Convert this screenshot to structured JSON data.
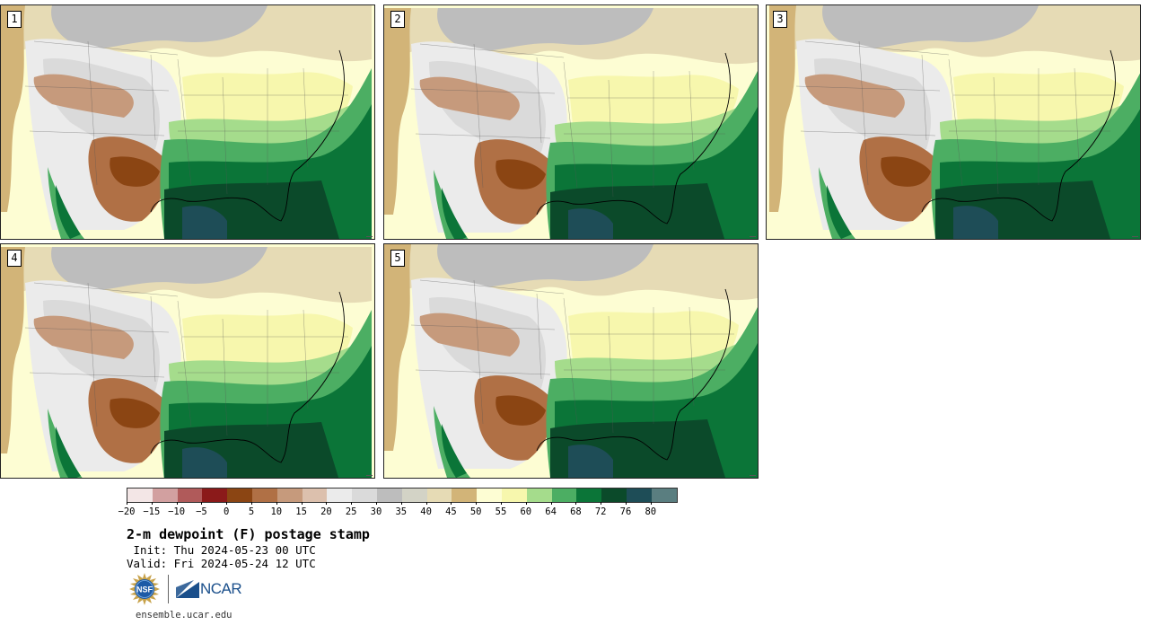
{
  "panels": [
    {
      "label": "1"
    },
    {
      "label": "2"
    },
    {
      "label": "3"
    },
    {
      "label": "4"
    },
    {
      "label": "5"
    }
  ],
  "colorbar": {
    "colors": [
      "#f3e6e6",
      "#d2a0a0",
      "#b05a5a",
      "#8b1a1a",
      "#8b4513",
      "#b07045",
      "#c69a7c",
      "#dcc0ad",
      "#ebebeb",
      "#dadada",
      "#bdbdbd",
      "#d3d3c6",
      "#e6dbb5",
      "#d2b478",
      "#fdfdd3",
      "#f7f7ad",
      "#a5dc8c",
      "#4cae63",
      "#0b7538",
      "#0b4a2a",
      "#1e4d57",
      "#5a7e80"
    ],
    "ticks": [
      "−20",
      "−15",
      "−10",
      "−5",
      "0",
      "5",
      "10",
      "15",
      "20",
      "25",
      "30",
      "35",
      "40",
      "45",
      "50",
      "55",
      "60",
      "64",
      "68",
      "72",
      "76",
      "80"
    ]
  },
  "title": "2-m dewpoint (F) postage stamp",
  "init_line": " Init: Thu 2024-05-23 00 UTC",
  "valid_line": "Valid: Fri 2024-05-24 12 UTC",
  "logos": {
    "ncar": "NCAR"
  },
  "footer": "ensemble.ucar.edu"
}
